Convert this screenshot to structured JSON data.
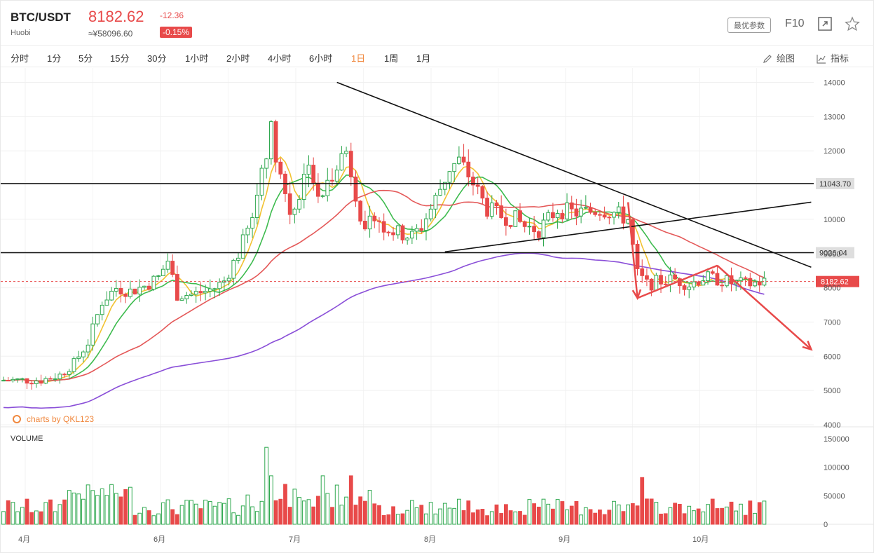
{
  "header": {
    "pair": "BTC/USDT",
    "exchange": "Huobi",
    "price": "8182.62",
    "change": "-12.36",
    "cny": "≈¥58096.60",
    "change_pct": "-0.15%",
    "params_label": "最优参数",
    "f10_label": "F10",
    "icons": [
      "fullscreen-icon",
      "star-icon"
    ]
  },
  "periods": [
    {
      "label": "分时",
      "active": false
    },
    {
      "label": "1分",
      "active": false
    },
    {
      "label": "5分",
      "active": false
    },
    {
      "label": "15分",
      "active": false
    },
    {
      "label": "30分",
      "active": false
    },
    {
      "label": "1小时",
      "active": false
    },
    {
      "label": "2小时",
      "active": false
    },
    {
      "label": "4小时",
      "active": false
    },
    {
      "label": "6小时",
      "active": false
    },
    {
      "label": "1日",
      "active": true
    },
    {
      "label": "1周",
      "active": false
    },
    {
      "label": "1月",
      "active": false
    }
  ],
  "tools": {
    "draw_label": "绘图",
    "indicator_label": "指标"
  },
  "watermark": "charts by QKL123",
  "volume_title": "VOLUME",
  "colors": {
    "up": "#2fa84f",
    "down": "#e84a4a",
    "ma_yellow": "#f2c231",
    "ma_green": "#3dbb4e",
    "ma_red": "#e45858",
    "ma_purple": "#8a4fd8",
    "accent": "#f0883e"
  },
  "chart_data": {
    "type": "candlestick",
    "x_ticks": [
      "4月",
      "6月",
      "7月",
      "8月",
      "9月",
      "10月"
    ],
    "y_ticks": [
      14000,
      13000,
      12000,
      10000,
      9000,
      8000,
      7000,
      6000,
      5000,
      4000
    ],
    "y_range": [
      4000,
      14000
    ],
    "volume_ticks": [
      150000,
      100000,
      50000,
      0
    ],
    "volume_range": [
      0,
      150000
    ],
    "current_price": {
      "value": 8182.62,
      "label": "8182.62"
    },
    "horizontal_levels": [
      {
        "value": 11043.7,
        "label": "11043.70"
      },
      {
        "value": 9026.04,
        "label": "9026.04"
      }
    ],
    "close_path": [
      [
        0,
        5300
      ],
      [
        8,
        5300
      ],
      [
        12,
        5450
      ],
      [
        15,
        5800
      ],
      [
        18,
        6400
      ],
      [
        21,
        7600
      ],
      [
        24,
        8000
      ],
      [
        27,
        7900
      ],
      [
        30,
        8050
      ],
      [
        33,
        8300
      ],
      [
        35,
        8800
      ],
      [
        37,
        7800
      ],
      [
        40,
        7800
      ],
      [
        43,
        7900
      ],
      [
        45,
        8000
      ],
      [
        47,
        8200
      ],
      [
        50,
        9000
      ],
      [
        53,
        10000
      ],
      [
        55,
        11500
      ],
      [
        57,
        12600
      ],
      [
        59,
        11300
      ],
      [
        61,
        10200
      ],
      [
        63,
        10700
      ],
      [
        65,
        11800
      ],
      [
        67,
        10500
      ],
      [
        69,
        11000
      ],
      [
        71,
        11700
      ],
      [
        73,
        12000
      ],
      [
        75,
        10800
      ],
      [
        77,
        9500
      ],
      [
        79,
        10200
      ],
      [
        81,
        9800
      ],
      [
        84,
        9600
      ],
      [
        87,
        9500
      ],
      [
        89,
        9800
      ],
      [
        91,
        10300
      ],
      [
        93,
        10900
      ],
      [
        95,
        11500
      ],
      [
        97,
        11700
      ],
      [
        99,
        11300
      ],
      [
        101,
        10800
      ],
      [
        103,
        10300
      ],
      [
        106,
        10100
      ],
      [
        109,
        10000
      ],
      [
        111,
        9800
      ],
      [
        114,
        9700
      ],
      [
        116,
        10000
      ],
      [
        118,
        10300
      ],
      [
        121,
        10200
      ],
      [
        124,
        10200
      ],
      [
        127,
        10300
      ],
      [
        130,
        10200
      ],
      [
        133,
        10000
      ],
      [
        135,
        8400
      ],
      [
        137,
        8100
      ],
      [
        140,
        8200
      ],
      [
        143,
        8250
      ],
      [
        146,
        8100
      ],
      [
        149,
        8300
      ],
      [
        152,
        8250
      ],
      [
        155,
        8150
      ],
      [
        158,
        8100
      ],
      [
        162,
        8182
      ]
    ],
    "candle_count": 163,
    "ma_periods": [
      5,
      10,
      30,
      60
    ],
    "drawn_lines": [
      {
        "from": [
          71,
          14000
        ],
        "to": [
          172,
          8600
        ]
      },
      {
        "from": [
          94,
          9050
        ],
        "to": [
          172,
          10500
        ]
      }
    ],
    "arrows": [
      {
        "from": [
          133,
          10500
        ],
        "to": [
          135,
          7700
        ],
        "color": "#e84a4a"
      },
      {
        "from": [
          135,
          7700
        ],
        "to": [
          152,
          8650
        ],
        "color": "#e84a4a"
      },
      {
        "from": [
          152,
          8650
        ],
        "to": [
          172,
          6200
        ],
        "color": "#e84a4a"
      }
    ]
  }
}
